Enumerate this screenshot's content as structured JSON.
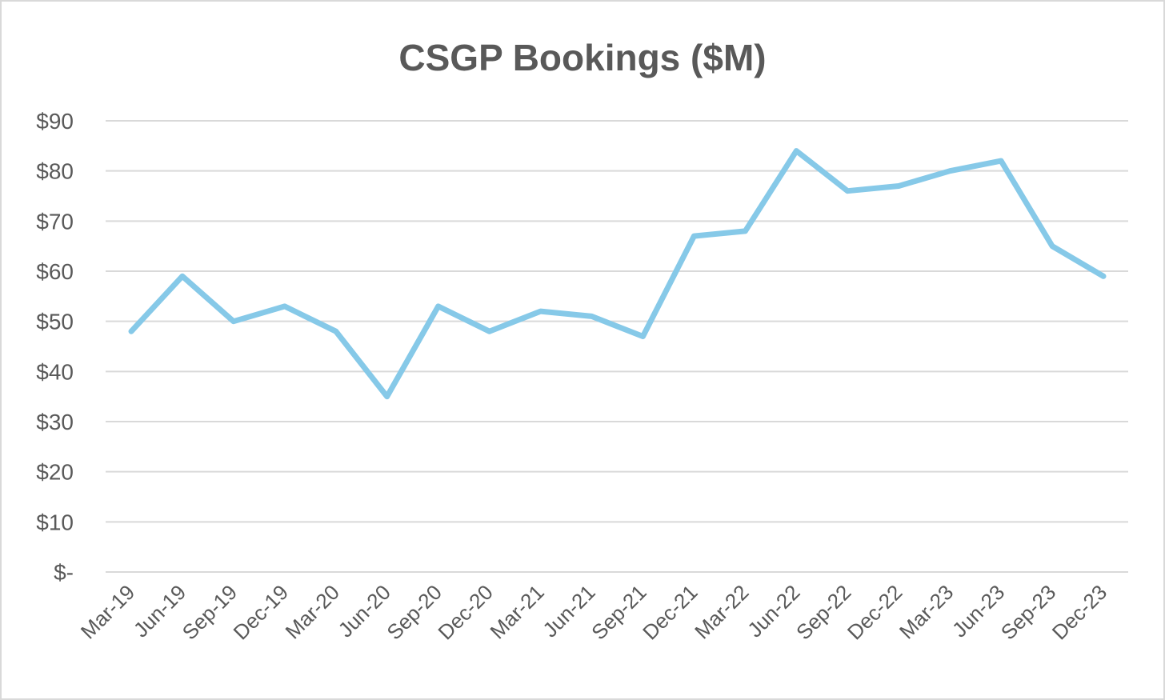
{
  "chart_data": {
    "type": "line",
    "title": "CSGP Bookings ($M)",
    "xlabel": "",
    "ylabel": "",
    "categories": [
      "Mar-19",
      "Jun-19",
      "Sep-19",
      "Dec-19",
      "Mar-20",
      "Jun-20",
      "Sep-20",
      "Dec-20",
      "Mar-21",
      "Jun-21",
      "Sep-21",
      "Dec-21",
      "Mar-22",
      "Jun-22",
      "Sep-22",
      "Dec-22",
      "Mar-23",
      "Jun-23",
      "Sep-23",
      "Dec-23"
    ],
    "series": [
      {
        "values": [
          48,
          59,
          50,
          53,
          48,
          35,
          53,
          48,
          52,
          51,
          47,
          67,
          68,
          84,
          76,
          77,
          80,
          82,
          65,
          59
        ],
        "color": "#86c9e8"
      }
    ],
    "ylim": [
      0,
      90
    ],
    "yticks": [
      0,
      10,
      20,
      30,
      40,
      50,
      60,
      70,
      80,
      90
    ],
    "ytick_labels": [
      "$-",
      "$10",
      "$20",
      "$30",
      "$40",
      "$50",
      "$60",
      "$70",
      "$80",
      "$90"
    ],
    "grid": true,
    "legend": "none"
  }
}
